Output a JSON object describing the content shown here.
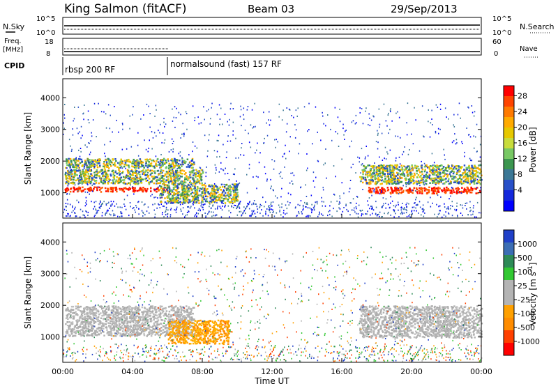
{
  "header": {
    "station": "King Salmon (fitACF)",
    "beam": "Beam 03",
    "date": "29/Sep/2013"
  },
  "top_panels": {
    "nsky_label": "N.Sky",
    "nsearch_label": "N.Search",
    "noise_ticks": [
      "10^5",
      "10^0"
    ],
    "freq_label_1": "Freq.",
    "freq_label_2": "[MHz]",
    "freq_ticks": [
      "18",
      "8"
    ],
    "nave_label": "Nave",
    "nave_ticks": [
      "60",
      "0"
    ],
    "cpid_label": "CPID",
    "cpid_segments": [
      {
        "name": "rbsp 200 RF",
        "start_hour": 0,
        "end_hour": 6
      },
      {
        "name": "normalsound (fast) 157 RF",
        "start_hour": 6,
        "end_hour": 24
      }
    ]
  },
  "chart_data": [
    {
      "type": "heatmap",
      "name": "power-panel",
      "ylabel": "Slant Range [km]",
      "xlim": [
        0,
        24
      ],
      "ylim": [
        200,
        4600
      ],
      "yticks": [
        1000,
        2000,
        3000,
        4000
      ],
      "colorbar": {
        "label": "Power [dB]",
        "ticks": [
          "28",
          "24",
          "20",
          "16",
          "12",
          "8",
          "4"
        ],
        "colors": [
          "#ff0000",
          "#ff4400",
          "#ff7a00",
          "#ffaa00",
          "#e6c800",
          "#c8dc3c",
          "#78c864",
          "#3c9650",
          "#3c7896",
          "#2850c8",
          "#1428dc",
          "#0000ff"
        ]
      },
      "bands": [
        {
          "range_km": [
            1050,
            1200
          ],
          "hours": [
            0.1,
            6.0
          ],
          "level": "high"
        },
        {
          "range_km": [
            1300,
            1750
          ],
          "hours": [
            0.1,
            8.0
          ],
          "level": "mid"
        },
        {
          "range_km": [
            1800,
            2100
          ],
          "hours": [
            0.1,
            7.5
          ],
          "level": "mid"
        },
        {
          "range_km": [
            1000,
            1200
          ],
          "hours": [
            17.5,
            24.0
          ],
          "level": "high"
        },
        {
          "range_km": [
            1300,
            1900
          ],
          "hours": [
            17.0,
            24.0
          ],
          "level": "mid"
        },
        {
          "range_km": [
            700,
            1300
          ],
          "hours": [
            5.5,
            10.0
          ],
          "level": "mid"
        }
      ]
    },
    {
      "type": "heatmap",
      "name": "velocity-panel",
      "ylabel": "Slant Range [km]",
      "xlabel": "Time UT",
      "xlim": [
        0,
        24
      ],
      "ylim": [
        200,
        4600
      ],
      "yticks": [
        1000,
        2000,
        3000,
        4000
      ],
      "xticks": [
        "00:00",
        "04:00",
        "08:00",
        "12:00",
        "16:00",
        "20:00",
        "00:00"
      ],
      "colorbar": {
        "label": "Velocity [m s",
        "label_sup": "-1",
        "label_end": "]",
        "ticks": [
          "1000",
          "500",
          "100",
          "25",
          "-25",
          "-100",
          "-500",
          "-1000"
        ],
        "colors": [
          "#2040c8",
          "#3c6eb4",
          "#2e8b57",
          "#32c832",
          "#b4b4b4",
          "#b4b4b4",
          "#ffa000",
          "#ff8c00",
          "#ff4000",
          "#ff0000"
        ]
      },
      "bands": [
        {
          "range_km": [
            1050,
            2000
          ],
          "hours": [
            0.1,
            7.5
          ],
          "level": "ground"
        },
        {
          "range_km": [
            800,
            1550
          ],
          "hours": [
            6.0,
            9.5
          ],
          "level": "negative"
        },
        {
          "range_km": [
            1000,
            2000
          ],
          "hours": [
            17.0,
            24.0
          ],
          "level": "ground"
        }
      ]
    }
  ]
}
